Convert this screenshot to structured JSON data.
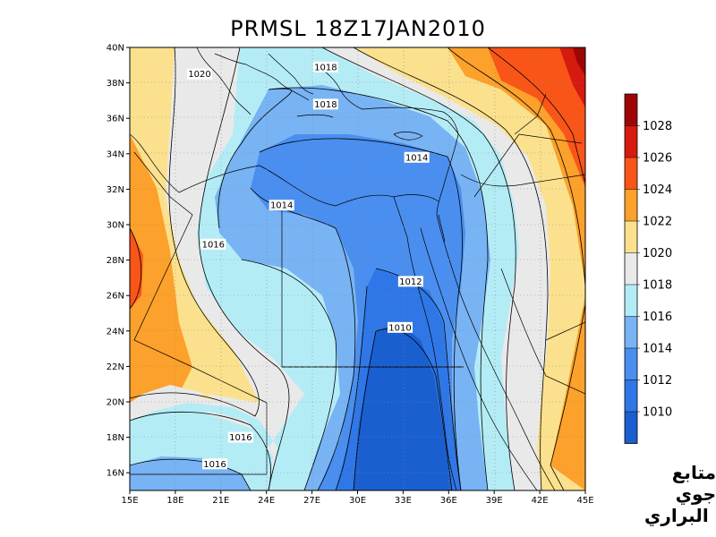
{
  "title": "PRMSL 18Z17JAN2010",
  "lat_labels": [
    "40N",
    "38N",
    "36N",
    "34N",
    "32N",
    "30N",
    "28N",
    "26N",
    "24N",
    "22N",
    "20N",
    "18N",
    "16N"
  ],
  "lon_labels": [
    "15E",
    "18E",
    "21E",
    "24E",
    "27E",
    "30E",
    "33E",
    "36E",
    "39E",
    "42E",
    "45E"
  ],
  "contour_labels": [
    {
      "text": "1020",
      "lon": 19.6,
      "lat": 38.5
    },
    {
      "text": "1018",
      "lon": 27.9,
      "lat": 38.9
    },
    {
      "text": "1018",
      "lon": 27.9,
      "lat": 36.8
    },
    {
      "text": "1014",
      "lon": 33.9,
      "lat": 33.8
    },
    {
      "text": "1014",
      "lon": 25.0,
      "lat": 31.1
    },
    {
      "text": "1016",
      "lon": 20.5,
      "lat": 28.9
    },
    {
      "text": "1012",
      "lon": 33.5,
      "lat": 26.8
    },
    {
      "text": "1010",
      "lon": 32.8,
      "lat": 24.2
    },
    {
      "text": "1016",
      "lon": 22.3,
      "lat": 18.0
    },
    {
      "text": "1016",
      "lon": 20.6,
      "lat": 16.5
    }
  ],
  "colorbar": {
    "levels": [
      "1010",
      "1012",
      "1014",
      "1016",
      "1018",
      "1020",
      "1022",
      "1024",
      "1026",
      "1028"
    ],
    "colors": [
      "#1a5fd0",
      "#2f77e6",
      "#4a8fef",
      "#78b3f4",
      "#b4ecf6",
      "#e9e9e9",
      "#fbe18d",
      "#fca12b",
      "#fa5518",
      "#d51a0f",
      "#9e0606"
    ]
  },
  "signature": {
    "line1": "متابع جوي",
    "line2": "البراري"
  }
}
